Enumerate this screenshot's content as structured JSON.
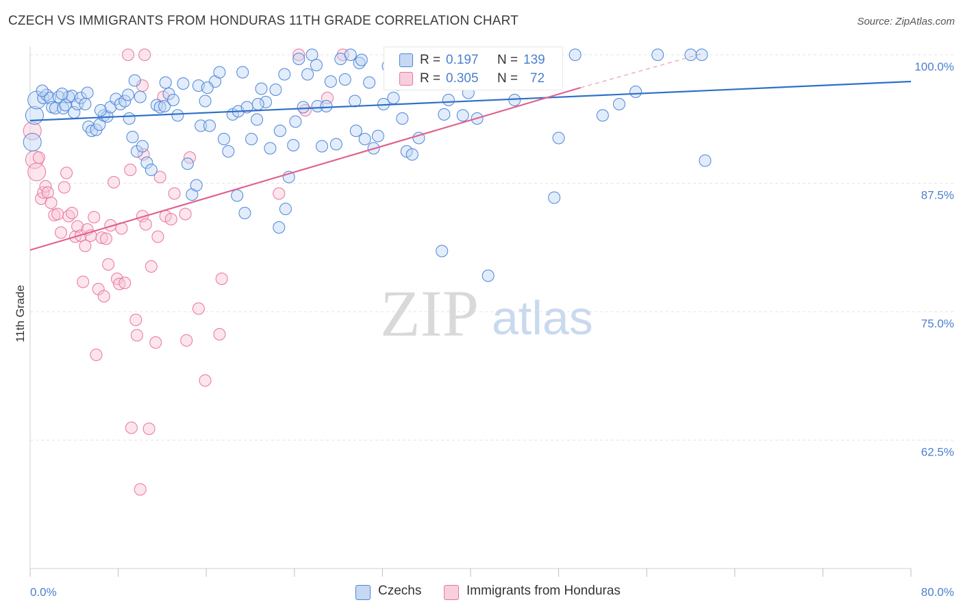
{
  "title": "CZECH VS IMMIGRANTS FROM HONDURAS 11TH GRADE CORRELATION CHART",
  "source": "Source: ZipAtlas.com",
  "watermark": {
    "zip": "ZIP",
    "atlas": "atlas"
  },
  "colors": {
    "czechs": "#4a86d8",
    "honduras": "#e8749c",
    "axis_text": "#4a7fcf"
  },
  "legend_top": {
    "rows": [
      {
        "r_label": "R =",
        "r_value": "0.197",
        "n_label": "N =",
        "n_value": "139"
      },
      {
        "r_label": "R =",
        "r_value": "0.305",
        "n_label": "N =",
        "n_value": "72"
      }
    ]
  },
  "legend_bottom": {
    "czechs": "Czechs",
    "honduras": "Immigrants from Honduras"
  },
  "chart_data": {
    "type": "scatter",
    "title": "CZECH VS IMMIGRANTS FROM HONDURAS 11TH GRADE CORRELATION CHART",
    "xlabel": "",
    "ylabel": "11th Grade",
    "xlim": [
      0,
      80
    ],
    "ylim": [
      50,
      101.5
    ],
    "x_tick_labels": {
      "min": "0.0%",
      "max": "80.0%"
    },
    "y_ticks": [
      62.5,
      75.0,
      87.5,
      100.0
    ],
    "y_tick_labels": [
      "62.5%",
      "75.0%",
      "87.5%",
      "100.0%"
    ],
    "grid": true,
    "legend_position": "top-center",
    "series": [
      {
        "name": "Czechs",
        "r": 0.197,
        "n": 139,
        "trend": {
          "x": [
            0,
            80
          ],
          "y": [
            93.6,
            97.4
          ]
        },
        "points": [
          [
            0.2,
            91.5
          ],
          [
            0.4,
            94.1
          ],
          [
            0.6,
            95.6
          ],
          [
            1.2,
            95.8
          ],
          [
            1.5,
            96.1
          ],
          [
            1.8,
            95.8
          ],
          [
            2.0,
            94.9
          ],
          [
            2.3,
            94.8
          ],
          [
            2.6,
            95.9
          ],
          [
            3.0,
            94.8
          ],
          [
            3.2,
            95.1
          ],
          [
            3.5,
            95.9
          ],
          [
            3.8,
            96.0
          ],
          [
            4.0,
            94.4
          ],
          [
            4.3,
            95.2
          ],
          [
            4.6,
            95.8
          ],
          [
            5.0,
            95.2
          ],
          [
            5.3,
            93.0
          ],
          [
            5.6,
            92.6
          ],
          [
            6.0,
            92.7
          ],
          [
            6.3,
            93.2
          ],
          [
            6.7,
            94.1
          ],
          [
            7.0,
            94.0
          ],
          [
            7.3,
            94.9
          ],
          [
            7.8,
            95.7
          ],
          [
            8.2,
            95.2
          ],
          [
            8.6,
            95.5
          ],
          [
            9.0,
            93.8
          ],
          [
            9.3,
            92.0
          ],
          [
            9.7,
            90.6
          ],
          [
            10.2,
            91.1
          ],
          [
            10.6,
            89.5
          ],
          [
            11.0,
            88.8
          ],
          [
            11.5,
            95.1
          ],
          [
            11.8,
            94.9
          ],
          [
            12.2,
            95.0
          ],
          [
            12.6,
            96.2
          ],
          [
            13.0,
            95.6
          ],
          [
            13.4,
            94.1
          ],
          [
            13.9,
            97.2
          ],
          [
            14.3,
            89.4
          ],
          [
            14.7,
            86.4
          ],
          [
            15.1,
            87.3
          ],
          [
            15.5,
            93.1
          ],
          [
            15.9,
            95.5
          ],
          [
            16.3,
            93.1
          ],
          [
            16.8,
            97.4
          ],
          [
            17.2,
            98.3
          ],
          [
            17.6,
            91.8
          ],
          [
            18.0,
            90.6
          ],
          [
            18.4,
            94.2
          ],
          [
            18.9,
            94.5
          ],
          [
            19.3,
            98.3
          ],
          [
            19.7,
            94.9
          ],
          [
            20.1,
            91.8
          ],
          [
            20.6,
            93.7
          ],
          [
            21.0,
            96.7
          ],
          [
            21.4,
            95.4
          ],
          [
            21.8,
            90.9
          ],
          [
            22.3,
            96.6
          ],
          [
            22.7,
            92.6
          ],
          [
            23.1,
            98.1
          ],
          [
            23.5,
            88.1
          ],
          [
            23.9,
            91.2
          ],
          [
            24.4,
            99.6
          ],
          [
            24.8,
            94.9
          ],
          [
            25.2,
            98.1
          ],
          [
            25.6,
            100.0
          ],
          [
            26.1,
            95.0
          ],
          [
            26.5,
            91.1
          ],
          [
            26.9,
            95.0
          ],
          [
            27.3,
            97.4
          ],
          [
            27.8,
            91.3
          ],
          [
            28.2,
            99.6
          ],
          [
            28.6,
            97.6
          ],
          [
            29.1,
            100.0
          ],
          [
            29.5,
            95.5
          ],
          [
            29.9,
            99.2
          ],
          [
            30.4,
            91.8
          ],
          [
            30.8,
            97.3
          ],
          [
            31.2,
            90.9
          ],
          [
            31.6,
            92.1
          ],
          [
            32.1,
            95.2
          ],
          [
            32.5,
            98.9
          ],
          [
            32.9,
            100.0
          ],
          [
            33.4,
            97.1
          ],
          [
            33.8,
            93.8
          ],
          [
            34.2,
            90.6
          ],
          [
            34.7,
            90.3
          ],
          [
            35.3,
            91.9
          ],
          [
            36.0,
            97.6
          ],
          [
            37.0,
            100.0
          ],
          [
            37.6,
            94.2
          ],
          [
            38.0,
            95.6
          ],
          [
            38.5,
            97.5
          ],
          [
            39.3,
            94.1
          ],
          [
            40.0,
            97.3
          ],
          [
            40.6,
            93.8
          ],
          [
            41.3,
            98.8
          ],
          [
            42.0,
            99.9
          ],
          [
            43.0,
            97.2
          ],
          [
            44.0,
            95.6
          ],
          [
            45.2,
            100.0
          ],
          [
            46.0,
            98.3
          ],
          [
            47.0,
            99.3
          ],
          [
            48.0,
            91.9
          ],
          [
            49.5,
            100.0
          ],
          [
            52.0,
            94.1
          ],
          [
            53.5,
            95.2
          ],
          [
            55.0,
            96.4
          ],
          [
            57.0,
            100.0
          ],
          [
            60.0,
            100.0
          ],
          [
            61.0,
            100.0
          ],
          [
            61.3,
            89.7
          ],
          [
            37.4,
            80.9
          ],
          [
            41.6,
            78.5
          ],
          [
            47.6,
            86.1
          ],
          [
            19.5,
            84.6
          ],
          [
            23.2,
            85.0
          ],
          [
            22.6,
            83.2
          ],
          [
            18.8,
            86.3
          ],
          [
            6.4,
            94.6
          ],
          [
            8.9,
            96.1
          ],
          [
            5.2,
            96.3
          ],
          [
            2.9,
            96.2
          ],
          [
            1.1,
            96.5
          ],
          [
            24.1,
            93.5
          ],
          [
            20.7,
            95.2
          ],
          [
            15.3,
            97.0
          ],
          [
            12.3,
            97.3
          ],
          [
            10.0,
            95.9
          ],
          [
            30.1,
            99.5
          ],
          [
            33.0,
            95.8
          ],
          [
            26.0,
            99.0
          ],
          [
            35.8,
            99.0
          ],
          [
            39.8,
            96.3
          ],
          [
            29.6,
            92.6
          ],
          [
            9.5,
            97.5
          ],
          [
            16.1,
            96.8
          ]
        ]
      },
      {
        "name": "Immigrants from Honduras",
        "r": 0.305,
        "n": 72,
        "trend": {
          "x": [
            0,
            50
          ],
          "y": [
            81.0,
            96.8
          ]
        },
        "trend_dashed": {
          "x": [
            50,
            61
          ],
          "y": [
            96.8,
            100.1
          ]
        },
        "points": [
          [
            0.2,
            92.6
          ],
          [
            0.4,
            89.8
          ],
          [
            0.6,
            88.6
          ],
          [
            0.8,
            90.0
          ],
          [
            1.0,
            86.0
          ],
          [
            1.2,
            86.6
          ],
          [
            1.4,
            87.2
          ],
          [
            1.6,
            86.6
          ],
          [
            1.9,
            85.6
          ],
          [
            2.2,
            84.4
          ],
          [
            2.5,
            84.5
          ],
          [
            2.8,
            82.7
          ],
          [
            3.1,
            87.1
          ],
          [
            3.3,
            88.5
          ],
          [
            3.5,
            84.3
          ],
          [
            3.8,
            84.6
          ],
          [
            4.1,
            82.3
          ],
          [
            4.3,
            83.3
          ],
          [
            4.6,
            82.4
          ],
          [
            4.8,
            77.9
          ],
          [
            5.0,
            81.4
          ],
          [
            5.2,
            83.0
          ],
          [
            5.5,
            82.4
          ],
          [
            5.8,
            84.2
          ],
          [
            6.0,
            70.8
          ],
          [
            6.2,
            77.2
          ],
          [
            6.5,
            82.2
          ],
          [
            6.7,
            76.5
          ],
          [
            6.9,
            82.1
          ],
          [
            7.1,
            79.6
          ],
          [
            7.3,
            83.4
          ],
          [
            7.6,
            87.6
          ],
          [
            7.9,
            78.2
          ],
          [
            8.1,
            77.7
          ],
          [
            8.3,
            83.1
          ],
          [
            8.6,
            77.8
          ],
          [
            9.1,
            88.8
          ],
          [
            9.2,
            63.7
          ],
          [
            9.6,
            74.2
          ],
          [
            9.7,
            72.7
          ],
          [
            10.0,
            57.7
          ],
          [
            10.2,
            84.3
          ],
          [
            10.3,
            90.3
          ],
          [
            10.5,
            83.5
          ],
          [
            10.8,
            63.6
          ],
          [
            11.0,
            79.4
          ],
          [
            11.4,
            72.0
          ],
          [
            11.6,
            82.3
          ],
          [
            11.8,
            88.1
          ],
          [
            12.1,
            95.9
          ],
          [
            12.3,
            84.3
          ],
          [
            12.8,
            84.0
          ],
          [
            13.1,
            86.5
          ],
          [
            14.1,
            84.5
          ],
          [
            14.2,
            72.2
          ],
          [
            14.5,
            90.0
          ],
          [
            15.3,
            75.3
          ],
          [
            15.9,
            68.3
          ],
          [
            17.2,
            72.8
          ],
          [
            17.4,
            78.2
          ],
          [
            22.6,
            86.5
          ],
          [
            24.4,
            100.0
          ],
          [
            25.0,
            94.6
          ],
          [
            27.0,
            95.8
          ],
          [
            28.4,
            100.0
          ],
          [
            32.9,
            99.9
          ],
          [
            37.2,
            100.0
          ],
          [
            42.1,
            100.0
          ],
          [
            44.3,
            100.0
          ],
          [
            8.9,
            100.0
          ],
          [
            10.4,
            100.0
          ],
          [
            10.2,
            97.0
          ]
        ]
      }
    ]
  }
}
